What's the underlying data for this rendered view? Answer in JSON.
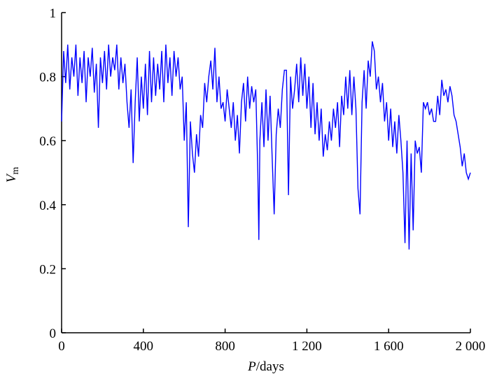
{
  "chart_data": {
    "type": "line",
    "xlabel": [
      "P",
      "/days"
    ],
    "ylabel": [
      "V",
      "m"
    ],
    "xlim": [
      0,
      2000
    ],
    "ylim": [
      0,
      1
    ],
    "xticks": [
      0,
      400,
      800,
      {
        "value": 1200,
        "label": "1 200"
      },
      {
        "value": 1600,
        "label": "1 600"
      },
      {
        "value": 2000,
        "label": "2 000"
      }
    ],
    "yticks": [
      0,
      0.2,
      0.4,
      0.6,
      0.8,
      1
    ],
    "grid": false,
    "series": [
      {
        "color": "#0000ff",
        "x": [
          0,
          10,
          20,
          30,
          40,
          50,
          60,
          70,
          80,
          90,
          100,
          110,
          120,
          130,
          140,
          150,
          160,
          170,
          180,
          190,
          200,
          210,
          220,
          230,
          240,
          250,
          260,
          270,
          280,
          290,
          300,
          310,
          320,
          330,
          340,
          350,
          360,
          370,
          380,
          390,
          400,
          410,
          420,
          430,
          440,
          450,
          460,
          470,
          480,
          490,
          500,
          510,
          520,
          530,
          540,
          550,
          560,
          570,
          580,
          590,
          600,
          610,
          620,
          630,
          640,
          650,
          660,
          670,
          680,
          690,
          700,
          710,
          720,
          730,
          740,
          750,
          760,
          770,
          780,
          790,
          800,
          810,
          820,
          830,
          840,
          850,
          860,
          870,
          880,
          890,
          900,
          910,
          920,
          930,
          940,
          950,
          960,
          965,
          970,
          980,
          990,
          1000,
          1010,
          1020,
          1030,
          1040,
          1050,
          1060,
          1070,
          1080,
          1090,
          1100,
          1110,
          1120,
          1130,
          1140,
          1150,
          1160,
          1170,
          1180,
          1190,
          1200,
          1210,
          1220,
          1230,
          1240,
          1250,
          1260,
          1270,
          1280,
          1290,
          1300,
          1310,
          1320,
          1330,
          1340,
          1350,
          1360,
          1370,
          1380,
          1390,
          1400,
          1410,
          1420,
          1430,
          1440,
          1450,
          1460,
          1470,
          1480,
          1490,
          1500,
          1510,
          1520,
          1530,
          1540,
          1550,
          1560,
          1570,
          1580,
          1590,
          1600,
          1610,
          1620,
          1630,
          1640,
          1650,
          1660,
          1670,
          1680,
          1690,
          1700,
          1710,
          1720,
          1730,
          1740,
          1750,
          1760,
          1770,
          1780,
          1790,
          1800,
          1810,
          1820,
          1830,
          1840,
          1850,
          1860,
          1870,
          1880,
          1890,
          1900,
          1910,
          1920,
          1930,
          1940,
          1950,
          1960,
          1970,
          1980,
          1990,
          2000
        ],
        "values": [
          0.66,
          0.88,
          0.78,
          0.9,
          0.76,
          0.86,
          0.8,
          0.9,
          0.74,
          0.86,
          0.78,
          0.88,
          0.72,
          0.86,
          0.8,
          0.89,
          0.75,
          0.84,
          0.64,
          0.86,
          0.78,
          0.88,
          0.76,
          0.9,
          0.8,
          0.86,
          0.82,
          0.9,
          0.76,
          0.86,
          0.78,
          0.84,
          0.72,
          0.64,
          0.76,
          0.53,
          0.72,
          0.86,
          0.66,
          0.8,
          0.7,
          0.84,
          0.68,
          0.88,
          0.72,
          0.86,
          0.74,
          0.84,
          0.76,
          0.88,
          0.72,
          0.9,
          0.78,
          0.86,
          0.74,
          0.88,
          0.8,
          0.86,
          0.76,
          0.8,
          0.6,
          0.72,
          0.33,
          0.66,
          0.56,
          0.5,
          0.62,
          0.55,
          0.68,
          0.64,
          0.78,
          0.72,
          0.8,
          0.85,
          0.76,
          0.89,
          0.72,
          0.8,
          0.7,
          0.72,
          0.66,
          0.76,
          0.7,
          0.64,
          0.72,
          0.6,
          0.68,
          0.56,
          0.72,
          0.78,
          0.66,
          0.8,
          0.7,
          0.77,
          0.72,
          0.76,
          0.5,
          0.29,
          0.6,
          0.72,
          0.58,
          0.76,
          0.6,
          0.74,
          0.55,
          0.37,
          0.62,
          0.7,
          0.64,
          0.76,
          0.82,
          0.82,
          0.43,
          0.8,
          0.7,
          0.76,
          0.84,
          0.72,
          0.86,
          0.74,
          0.84,
          0.7,
          0.8,
          0.64,
          0.78,
          0.62,
          0.72,
          0.6,
          0.7,
          0.55,
          0.62,
          0.57,
          0.66,
          0.6,
          0.7,
          0.64,
          0.72,
          0.58,
          0.74,
          0.68,
          0.8,
          0.7,
          0.82,
          0.68,
          0.8,
          0.7,
          0.45,
          0.37,
          0.72,
          0.82,
          0.7,
          0.85,
          0.8,
          0.91,
          0.88,
          0.76,
          0.8,
          0.72,
          0.78,
          0.66,
          0.72,
          0.6,
          0.7,
          0.58,
          0.66,
          0.56,
          0.68,
          0.6,
          0.5,
          0.28,
          0.6,
          0.26,
          0.56,
          0.32,
          0.6,
          0.56,
          0.58,
          0.5,
          0.72,
          0.7,
          0.72,
          0.68,
          0.7,
          0.66,
          0.66,
          0.74,
          0.68,
          0.79,
          0.74,
          0.76,
          0.72,
          0.77,
          0.74,
          0.68,
          0.66,
          0.62,
          0.58,
          0.52,
          0.56,
          0.5,
          0.48,
          0.5
        ]
      }
    ]
  }
}
